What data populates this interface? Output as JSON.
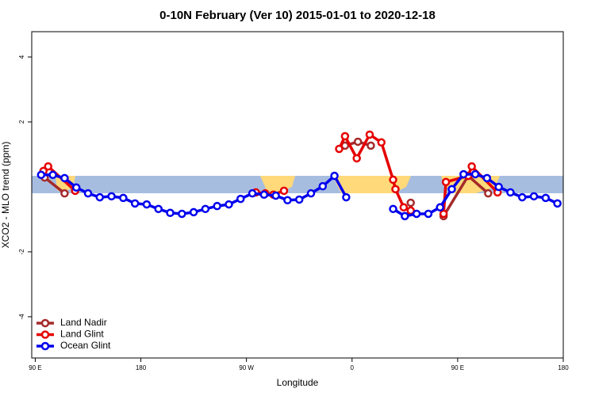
{
  "chart_data": {
    "type": "line",
    "title": "0-10N February (Ver 10)   2015-01-01 to 2020-12-18",
    "x_label": "Longitude",
    "y_label": "XCO2 - MLO trend (ppm)",
    "xlim": [
      87,
      540
    ],
    "ylim": [
      -5.27,
      4.78
    ],
    "xticks": [
      {
        "value": 90,
        "label": "90 E"
      },
      {
        "value": 180,
        "label": "180"
      },
      {
        "value": 270,
        "label": "90 W"
      },
      {
        "value": 360,
        "label": "0"
      },
      {
        "value": 450,
        "label": "90 E"
      },
      {
        "value": 540,
        "label": "180"
      }
    ],
    "yticks": [
      4,
      2,
      -2,
      -4
    ],
    "legend": "bottom-left",
    "series": [
      {
        "name": "Land Nadir",
        "color": "#a52a2a",
        "x": [
          98,
          115,
          200,
          354,
          365,
          376,
          390,
          410,
          430,
          438,
          459,
          476
        ],
        "values": [
          0.29,
          -0.2,
          null,
          1.27,
          1.39,
          1.27,
          null,
          -0.49,
          null,
          -0.9,
          0.34,
          -0.2
        ]
      },
      {
        "name": "Land Glint",
        "color": "#e60000",
        "x": [
          97,
          101,
          124,
          200,
          278,
          286,
          293,
          302,
          330,
          349,
          354,
          364,
          375,
          385,
          395,
          397,
          404,
          410,
          425,
          438,
          440,
          459,
          462,
          484
        ],
        "values": [
          0.49,
          0.63,
          -0.12,
          null,
          -0.17,
          -0.2,
          -0.24,
          -0.12,
          null,
          1.17,
          1.56,
          0.88,
          1.61,
          1.37,
          0.22,
          -0.07,
          -0.63,
          -0.73,
          null,
          -0.83,
          0.15,
          0.34,
          0.63,
          -0.17
        ]
      },
      {
        "name": "Ocean Glint",
        "color": "#0000ee",
        "x": [
          95,
          105,
          115,
          125,
          135,
          145,
          155,
          165,
          175,
          185,
          195,
          205,
          215,
          225,
          235,
          245,
          255,
          265,
          275,
          285,
          295,
          305,
          315,
          325,
          335,
          345,
          355,
          375,
          395,
          405,
          415,
          425,
          435,
          445,
          455,
          465,
          475,
          485,
          495,
          505,
          515,
          525,
          535
        ],
        "values": [
          0.37,
          0.37,
          0.27,
          -0.02,
          -0.2,
          -0.32,
          -0.29,
          -0.34,
          -0.51,
          -0.54,
          -0.68,
          -0.8,
          -0.83,
          -0.78,
          -0.68,
          -0.59,
          -0.54,
          -0.37,
          -0.2,
          -0.24,
          -0.27,
          -0.41,
          -0.39,
          -0.2,
          0.02,
          0.34,
          -0.32,
          null,
          -0.68,
          -0.9,
          -0.83,
          -0.83,
          -0.63,
          -0.07,
          0.39,
          0.39,
          0.27,
          0,
          -0.17,
          -0.32,
          -0.29,
          -0.34,
          -0.51
        ]
      }
    ]
  }
}
